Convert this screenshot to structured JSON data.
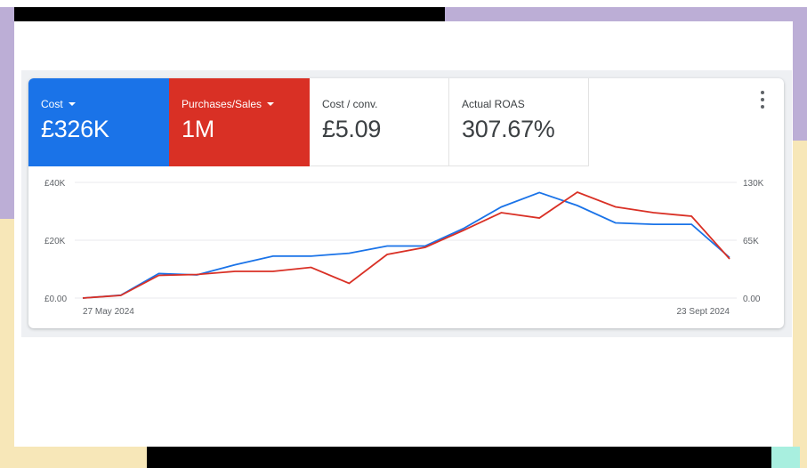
{
  "colors": {
    "cost_tile": "#1a73e8",
    "purchases_tile": "#d93025",
    "cost_line": "#1a73e8",
    "purchases_line": "#d93025",
    "gridline": "#e8eaed"
  },
  "tiles": [
    {
      "label": "Cost",
      "value": "£326K",
      "dropdown": true
    },
    {
      "label": "Purchases/Sales",
      "value": "1M",
      "dropdown": true
    },
    {
      "label": "Cost / conv.",
      "value": "£5.09",
      "dropdown": false
    },
    {
      "label": "Actual ROAS",
      "value": "307.67%",
      "dropdown": false
    }
  ],
  "more_icon": "more-vert-icon",
  "chart_data": {
    "type": "line",
    "x_start_label": "27 May 2024",
    "x_end_label": "23 Sept 2024",
    "left_axis": {
      "ticks": [
        "£40K",
        "£20K",
        "£0.00"
      ],
      "ylim": [
        0,
        40000
      ]
    },
    "right_axis": {
      "ticks": [
        "130K",
        "65K",
        "0.00"
      ],
      "ylim": [
        0,
        130000
      ]
    },
    "grid": true,
    "series": [
      {
        "name": "Cost",
        "axis": "left",
        "values": [
          0,
          1000,
          8500,
          8000,
          11500,
          14500,
          14500,
          15500,
          18000,
          18000,
          24000,
          31500,
          36500,
          32000,
          26000,
          25500,
          25500,
          14000
        ]
      },
      {
        "name": "Purchases/Sales",
        "axis": "right",
        "values": [
          0,
          3000,
          25500,
          26500,
          30000,
          30000,
          34500,
          16500,
          49000,
          57000,
          76000,
          96000,
          90000,
          119000,
          102500,
          96000,
          92000,
          44000
        ]
      }
    ]
  }
}
